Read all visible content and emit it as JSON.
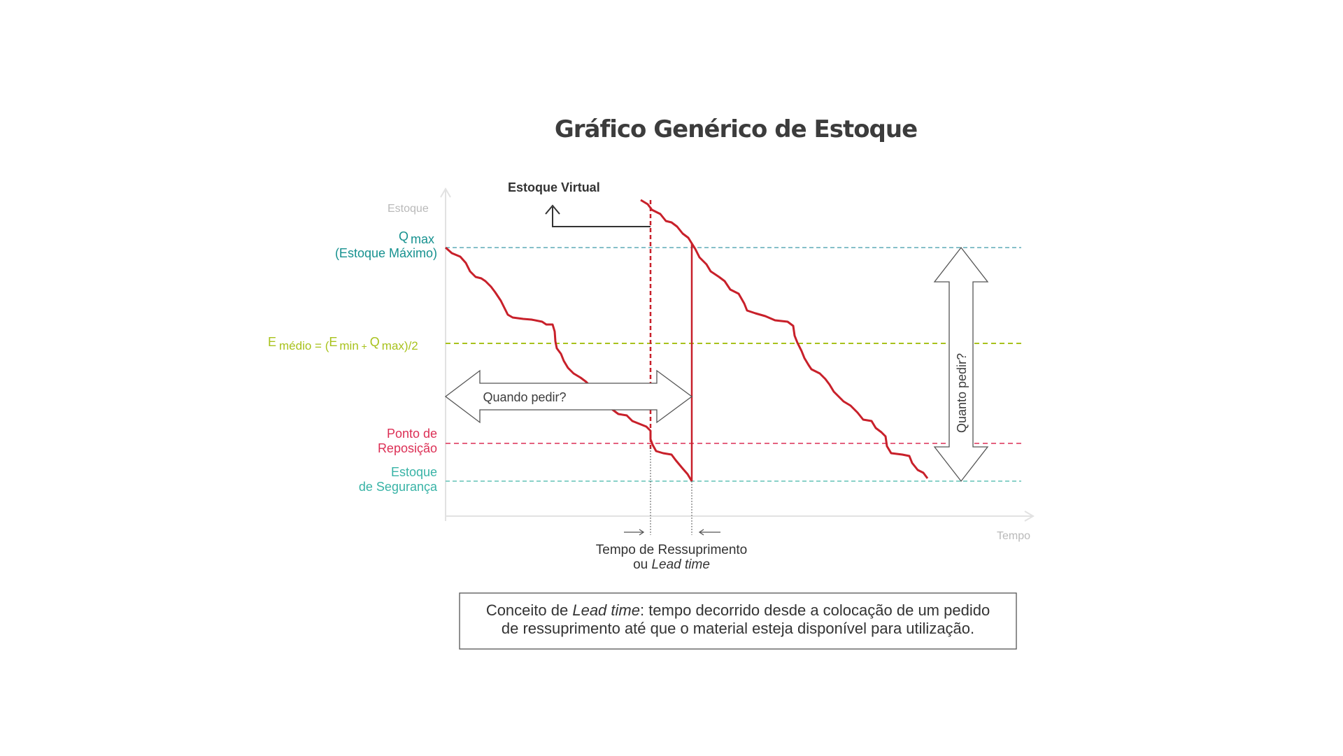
{
  "title": "Gráfico Genérico de Estoque",
  "axes": {
    "y_label": "Estoque",
    "x_label": "Tempo"
  },
  "levels": {
    "qmax": {
      "symbol": "Q",
      "sub": "max",
      "line2": "(Estoque Máximo)",
      "color": "#16918f"
    },
    "emedio": {
      "symbol": "E",
      "sub": "médio",
      "eq": " = (",
      "e2": "E",
      "sub2": "min",
      "plus": " + ",
      "q": "Q",
      "sub3": "max",
      "end": ")/2",
      "color": "#a8c21c"
    },
    "ponto": {
      "line1": "Ponto de",
      "line2": "Reposição",
      "color": "#dc2f55"
    },
    "seguranca": {
      "line1": "Estoque",
      "line2": "de Segurança",
      "color": "#38b3a6"
    }
  },
  "annotations": {
    "virtual": "Estoque Virtual",
    "quando": "Quando pedir?",
    "quanto": "Quanto pedir?",
    "lead_line1": "Tempo de Ressuprimento",
    "lead_prefix": "ou ",
    "lead_italic": "Lead time"
  },
  "concept": {
    "prefix": "Conceito de ",
    "italic": "Lead time",
    "rest1": ": tempo decorrido desde a colocação de um pedido",
    "line2": "de ressuprimento até que o material esteja disponível para utilização."
  },
  "colors": {
    "stock_line": "#c8202a",
    "arrow_outline": "#555555"
  }
}
